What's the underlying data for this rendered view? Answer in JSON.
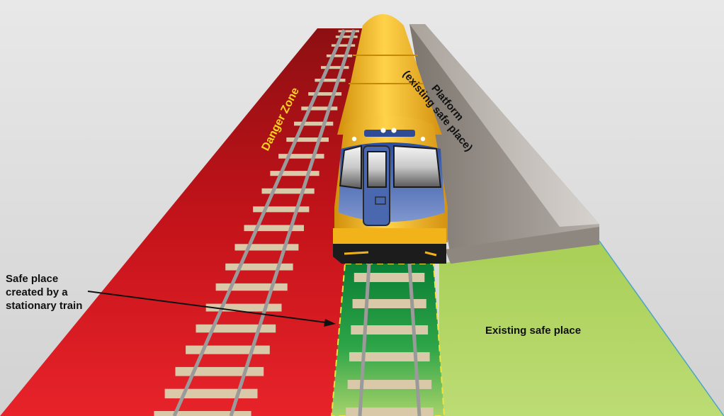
{
  "labels": {
    "danger_zone": "Danger Zone",
    "platform_line1": "Platform",
    "platform_line2": "(existing safe place)",
    "existing_safe_place": "Existing safe place",
    "stationary_line1": "Safe place",
    "stationary_line2": "created by a",
    "stationary_line3": "stationary train"
  },
  "colors": {
    "danger_zone": "#d9141a",
    "existing_safe_ground": "#b4d664",
    "safe_place_stationary": "#0d8a3c",
    "platform": "#9b948d",
    "train_body": "#f2b21a",
    "train_window_band": "#3f5fae",
    "danger_label": "#ffd21f",
    "sleeper": "#d9c9a8",
    "rail": "#a6a6a6"
  }
}
